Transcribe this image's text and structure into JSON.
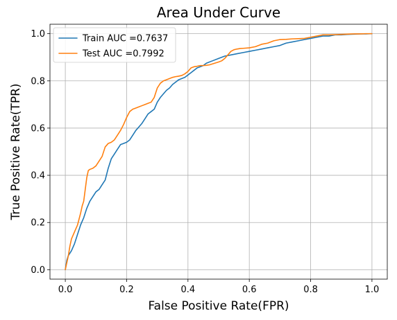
{
  "chart_data": {
    "type": "line",
    "title": "Area Under Curve",
    "xlabel": "False Positive Rate(FPR)",
    "ylabel": "True Positive Rate(TPR)",
    "xlim": [
      -0.05,
      1.05
    ],
    "ylim": [
      -0.04,
      1.04
    ],
    "xticks": [
      0.0,
      0.2,
      0.4,
      0.6,
      0.8,
      1.0
    ],
    "yticks": [
      0.0,
      0.2,
      0.4,
      0.6,
      0.8,
      1.0
    ],
    "xtick_labels": [
      "0.0",
      "0.2",
      "0.4",
      "0.6",
      "0.8",
      "1.0"
    ],
    "ytick_labels": [
      "0.0",
      "0.2",
      "0.4",
      "0.6",
      "0.8",
      "1.0"
    ],
    "grid": true,
    "legend_position": "top-left",
    "series": [
      {
        "name": "Train AUC =0.7637",
        "color": "#1f77b4",
        "x": [
          0,
          0.005,
          0.01,
          0.02,
          0.03,
          0.04,
          0.05,
          0.06,
          0.07,
          0.08,
          0.09,
          0.1,
          0.11,
          0.12,
          0.13,
          0.14,
          0.145,
          0.15,
          0.16,
          0.17,
          0.18,
          0.19,
          0.2,
          0.21,
          0.22,
          0.23,
          0.24,
          0.25,
          0.26,
          0.27,
          0.28,
          0.29,
          0.3,
          0.31,
          0.32,
          0.33,
          0.34,
          0.35,
          0.36,
          0.37,
          0.38,
          0.39,
          0.4,
          0.41,
          0.42,
          0.43,
          0.44,
          0.45,
          0.46,
          0.48,
          0.5,
          0.52,
          0.54,
          0.56,
          0.58,
          0.6,
          0.62,
          0.64,
          0.66,
          0.68,
          0.7,
          0.72,
          0.74,
          0.76,
          0.78,
          0.8,
          0.82,
          0.84,
          0.86,
          0.88,
          0.9,
          0.92,
          0.94,
          0.96,
          0.98,
          1.0
        ],
        "y": [
          0,
          0.04,
          0.06,
          0.08,
          0.11,
          0.15,
          0.19,
          0.22,
          0.26,
          0.29,
          0.31,
          0.33,
          0.34,
          0.36,
          0.38,
          0.43,
          0.45,
          0.47,
          0.49,
          0.51,
          0.53,
          0.535,
          0.54,
          0.55,
          0.57,
          0.59,
          0.605,
          0.62,
          0.64,
          0.66,
          0.67,
          0.68,
          0.71,
          0.73,
          0.745,
          0.76,
          0.77,
          0.785,
          0.795,
          0.805,
          0.81,
          0.815,
          0.825,
          0.835,
          0.845,
          0.855,
          0.86,
          0.865,
          0.875,
          0.885,
          0.895,
          0.905,
          0.91,
          0.915,
          0.92,
          0.925,
          0.93,
          0.935,
          0.94,
          0.945,
          0.95,
          0.96,
          0.965,
          0.97,
          0.975,
          0.98,
          0.985,
          0.99,
          0.99,
          0.995,
          0.995,
          0.997,
          0.998,
          0.999,
          0.999,
          1.0
        ]
      },
      {
        "name": "Test AUC =0.7992",
        "color": "#ff7f0e",
        "x": [
          0,
          0.005,
          0.01,
          0.015,
          0.02,
          0.03,
          0.04,
          0.05,
          0.055,
          0.06,
          0.065,
          0.07,
          0.075,
          0.08,
          0.09,
          0.1,
          0.11,
          0.12,
          0.13,
          0.14,
          0.15,
          0.16,
          0.17,
          0.18,
          0.19,
          0.2,
          0.21,
          0.22,
          0.23,
          0.24,
          0.25,
          0.26,
          0.27,
          0.28,
          0.29,
          0.3,
          0.31,
          0.32,
          0.33,
          0.34,
          0.35,
          0.36,
          0.37,
          0.38,
          0.39,
          0.4,
          0.41,
          0.42,
          0.43,
          0.44,
          0.45,
          0.46,
          0.47,
          0.48,
          0.49,
          0.5,
          0.51,
          0.52,
          0.53,
          0.54,
          0.55,
          0.56,
          0.57,
          0.58,
          0.6,
          0.62,
          0.64,
          0.66,
          0.68,
          0.7,
          0.72,
          0.74,
          0.76,
          0.78,
          0.8,
          0.82,
          0.84,
          0.86,
          0.88,
          0.9,
          0.92,
          0.94,
          0.96,
          0.98,
          1.0
        ],
        "y": [
          0,
          0.03,
          0.06,
          0.1,
          0.13,
          0.16,
          0.19,
          0.24,
          0.27,
          0.29,
          0.34,
          0.39,
          0.42,
          0.425,
          0.43,
          0.44,
          0.46,
          0.48,
          0.52,
          0.535,
          0.54,
          0.55,
          0.57,
          0.59,
          0.615,
          0.645,
          0.67,
          0.68,
          0.685,
          0.69,
          0.695,
          0.7,
          0.705,
          0.71,
          0.73,
          0.77,
          0.79,
          0.8,
          0.805,
          0.81,
          0.815,
          0.818,
          0.82,
          0.823,
          0.83,
          0.84,
          0.855,
          0.86,
          0.862,
          0.865,
          0.865,
          0.866,
          0.868,
          0.872,
          0.876,
          0.88,
          0.885,
          0.895,
          0.91,
          0.925,
          0.932,
          0.935,
          0.937,
          0.938,
          0.94,
          0.945,
          0.955,
          0.96,
          0.97,
          0.975,
          0.976,
          0.978,
          0.979,
          0.98,
          0.985,
          0.99,
          0.995,
          0.995,
          0.996,
          0.997,
          0.998,
          0.999,
          0.999,
          1.0,
          1.0
        ]
      }
    ]
  }
}
